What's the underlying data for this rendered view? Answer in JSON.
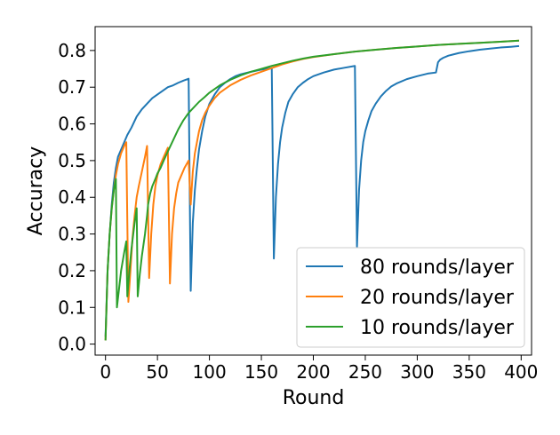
{
  "chart_data": {
    "type": "line",
    "xlabel": "Round",
    "ylabel": "Accuracy",
    "xlim": [
      -10,
      410
    ],
    "ylim": [
      -0.03,
      0.865
    ],
    "xticks": [
      0,
      50,
      100,
      150,
      200,
      250,
      300,
      350,
      400
    ],
    "yticks": [
      0.0,
      0.1,
      0.2,
      0.3,
      0.4,
      0.5,
      0.6,
      0.7,
      0.8
    ],
    "ytick_labels": [
      "0.0",
      "0.1",
      "0.2",
      "0.3",
      "0.4",
      "0.5",
      "0.6",
      "0.7",
      "0.8"
    ],
    "grid": false,
    "legend_position": "lower-right",
    "series": [
      {
        "name": "80 rounds/layer",
        "color": "#1f77b4",
        "x": [
          0,
          2,
          4,
          6,
          8,
          10,
          12,
          15,
          18,
          21,
          25,
          30,
          35,
          40,
          45,
          50,
          55,
          60,
          65,
          70,
          75,
          80,
          82,
          84,
          86,
          88,
          90,
          93,
          96,
          100,
          105,
          110,
          115,
          120,
          125,
          130,
          140,
          150,
          160,
          162,
          164,
          166,
          168,
          170,
          173,
          176,
          180,
          185,
          190,
          195,
          200,
          210,
          220,
          230,
          240,
          242,
          244,
          246,
          248,
          250,
          253,
          256,
          260,
          265,
          270,
          275,
          280,
          290,
          300,
          310,
          318,
          320,
          322,
          325,
          330,
          340,
          350,
          360,
          370,
          380,
          390,
          398
        ],
        "y": [
          0.02,
          0.2,
          0.3,
          0.38,
          0.44,
          0.48,
          0.51,
          0.53,
          0.55,
          0.57,
          0.59,
          0.62,
          0.64,
          0.655,
          0.67,
          0.68,
          0.69,
          0.7,
          0.705,
          0.712,
          0.718,
          0.723,
          0.145,
          0.33,
          0.42,
          0.48,
          0.53,
          0.58,
          0.62,
          0.655,
          0.68,
          0.7,
          0.712,
          0.722,
          0.73,
          0.735,
          0.742,
          0.748,
          0.752,
          0.233,
          0.4,
          0.49,
          0.55,
          0.59,
          0.63,
          0.66,
          0.68,
          0.7,
          0.712,
          0.722,
          0.73,
          0.74,
          0.748,
          0.753,
          0.758,
          0.265,
          0.42,
          0.5,
          0.55,
          0.58,
          0.61,
          0.635,
          0.655,
          0.675,
          0.69,
          0.702,
          0.71,
          0.722,
          0.73,
          0.737,
          0.74,
          0.768,
          0.775,
          0.78,
          0.786,
          0.793,
          0.798,
          0.802,
          0.805,
          0.808,
          0.81,
          0.812
        ]
      },
      {
        "name": "20 rounds/layer",
        "color": "#ff7f0e",
        "x": [
          0,
          2,
          4,
          6,
          8,
          10,
          12,
          15,
          18,
          20,
          22,
          24,
          26,
          28,
          30,
          32,
          35,
          38,
          40,
          42,
          44,
          46,
          48,
          50,
          53,
          56,
          60,
          62,
          64,
          66,
          68,
          70,
          73,
          76,
          80,
          82,
          84,
          86,
          88,
          90,
          93,
          96,
          100,
          105,
          110,
          120,
          130,
          140,
          150,
          160,
          170,
          180,
          190,
          200,
          220,
          240,
          260,
          280,
          300,
          320,
          340,
          360,
          380,
          398
        ],
        "y": [
          0.01,
          0.2,
          0.3,
          0.37,
          0.42,
          0.46,
          0.49,
          0.52,
          0.54,
          0.55,
          0.115,
          0.2,
          0.29,
          0.35,
          0.4,
          0.43,
          0.47,
          0.51,
          0.54,
          0.18,
          0.3,
          0.38,
          0.43,
          0.46,
          0.49,
          0.51,
          0.535,
          0.165,
          0.3,
          0.37,
          0.41,
          0.44,
          0.46,
          0.48,
          0.5,
          0.38,
          0.47,
          0.52,
          0.55,
          0.58,
          0.61,
          0.63,
          0.65,
          0.67,
          0.685,
          0.705,
          0.72,
          0.732,
          0.742,
          0.752,
          0.762,
          0.77,
          0.777,
          0.782,
          0.79,
          0.797,
          0.802,
          0.807,
          0.811,
          0.815,
          0.818,
          0.821,
          0.824,
          0.827
        ]
      },
      {
        "name": "10 rounds/layer",
        "color": "#2ca02c",
        "x": [
          0,
          2,
          4,
          6,
          8,
          10,
          11,
          13,
          15,
          18,
          20,
          21,
          23,
          25,
          28,
          30,
          31,
          33,
          35,
          38,
          40,
          41,
          43,
          45,
          48,
          50,
          53,
          56,
          60,
          65,
          70,
          75,
          80,
          85,
          90,
          95,
          100,
          110,
          120,
          130,
          140,
          150,
          160,
          170,
          180,
          190,
          200,
          220,
          240,
          260,
          280,
          300,
          320,
          340,
          360,
          380,
          398
        ],
        "y": [
          0.01,
          0.2,
          0.3,
          0.37,
          0.42,
          0.45,
          0.1,
          0.15,
          0.2,
          0.25,
          0.28,
          0.13,
          0.2,
          0.26,
          0.33,
          0.37,
          0.13,
          0.19,
          0.24,
          0.3,
          0.35,
          0.38,
          0.41,
          0.43,
          0.45,
          0.465,
          0.48,
          0.5,
          0.525,
          0.555,
          0.585,
          0.61,
          0.63,
          0.645,
          0.66,
          0.672,
          0.685,
          0.705,
          0.72,
          0.732,
          0.742,
          0.75,
          0.758,
          0.765,
          0.772,
          0.778,
          0.783,
          0.79,
          0.797,
          0.802,
          0.807,
          0.811,
          0.815,
          0.818,
          0.821,
          0.824,
          0.827
        ]
      }
    ]
  }
}
